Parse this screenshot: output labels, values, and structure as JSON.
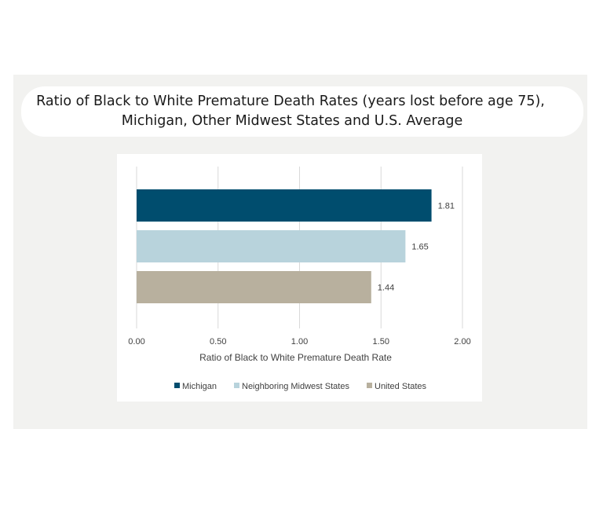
{
  "chart_data": {
    "type": "bar",
    "orientation": "horizontal",
    "title_lines": [
      "Ratio of Black to White Premature Death Rates (years lost before age 75),",
      "Michigan, Other Midwest States and U.S. Average"
    ],
    "categories": [
      "Michigan",
      "Neighboring Midwest States",
      "United States"
    ],
    "values": [
      1.81,
      1.65,
      1.44
    ],
    "value_labels": [
      "1.81",
      "1.65",
      "1.44"
    ],
    "colors": [
      "#004d6e",
      "#b8d3dc",
      "#b8b09e"
    ],
    "xlabel": "Ratio of Black to White Premature Death Rate",
    "xlim": [
      0,
      2
    ],
    "xticks": [
      0,
      0.5,
      1,
      1.5,
      2
    ],
    "xtick_labels": [
      "0.00",
      "0.50",
      "1.00",
      "1.50",
      "2.00"
    ],
    "grid": "vertical",
    "legend": {
      "placement": "bottom",
      "entries": [
        "Michigan",
        "Neighboring Midwest States",
        "United States"
      ]
    }
  }
}
